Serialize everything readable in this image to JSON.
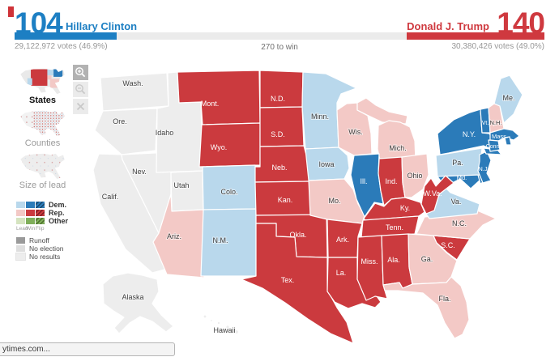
{
  "palette": {
    "dem_win": "#2b7bb9",
    "dem_lead": "#b9d8ec",
    "dem_flip": "#17466b",
    "rep_win": "#cb3a3e",
    "rep_lead": "#f3c9c6",
    "rep_flip": "#7e2023",
    "other_win": "#7fae5a",
    "other_lead": "#d5e4c0",
    "other_flip": "#4c6e2c",
    "runoff": "#9a9a9a",
    "no_election": "#dedede",
    "no_results": "#ededed",
    "dem_text": "#1d7fc3",
    "rep_text": "#cf393f",
    "bar_track": "#ebebeb",
    "marker": "#cf3339"
  },
  "header": {
    "clinton": {
      "name": "Hillary Clinton",
      "electoral_votes": "104",
      "votes_line": "29,122,972 votes (46.9%)"
    },
    "trump": {
      "name": "Donald J. Trump",
      "electoral_votes": "140",
      "votes_line": "30,380,426 votes (49.0%)"
    },
    "center_note": "270 to win",
    "bar": {
      "total_ev": 538,
      "clinton_ev": 104,
      "trump_ev": 140
    }
  },
  "sidebar": {
    "views": [
      {
        "label": "States",
        "active": true
      },
      {
        "label": "Counties",
        "active": false
      },
      {
        "label": "Size of lead",
        "active": false
      }
    ],
    "legend": {
      "rows": [
        {
          "key": "dem",
          "label": "Dem."
        },
        {
          "key": "rep",
          "label": "Rep."
        },
        {
          "key": "other",
          "label": "Other"
        }
      ],
      "modifiers": [
        "Lead",
        "Win",
        "Flip"
      ],
      "extra": [
        {
          "key": "runoff",
          "label": "Runoff"
        },
        {
          "key": "no_election",
          "label": "No election"
        },
        {
          "key": "no_results",
          "label": "No results"
        }
      ]
    }
  },
  "status_bar": {
    "text": "ytimes.com..."
  },
  "map": {
    "states": [
      {
        "id": "WA",
        "label": "Wash.",
        "status": "no_results"
      },
      {
        "id": "OR",
        "label": "Ore.",
        "status": "no_results"
      },
      {
        "id": "CA",
        "label": "Calif.",
        "status": "no_results"
      },
      {
        "id": "NV",
        "label": "Nev.",
        "status": "no_results"
      },
      {
        "id": "ID",
        "label": "Idaho",
        "status": "no_results"
      },
      {
        "id": "UT",
        "label": "Utah",
        "status": "no_results"
      },
      {
        "id": "AZ",
        "label": "Ariz.",
        "status": "rep_lead"
      },
      {
        "id": "MT",
        "label": "Mont.",
        "status": "rep_win"
      },
      {
        "id": "WY",
        "label": "Wyo.",
        "status": "rep_win"
      },
      {
        "id": "CO",
        "label": "Colo.",
        "status": "dem_lead"
      },
      {
        "id": "NM",
        "label": "N.M.",
        "status": "dem_lead"
      },
      {
        "id": "ND",
        "label": "N.D.",
        "status": "rep_win"
      },
      {
        "id": "SD",
        "label": "S.D.",
        "status": "rep_win"
      },
      {
        "id": "NE",
        "label": "Neb.",
        "status": "rep_win"
      },
      {
        "id": "KS",
        "label": "Kan.",
        "status": "rep_win"
      },
      {
        "id": "OK",
        "label": "Okla.",
        "status": "rep_win"
      },
      {
        "id": "TX",
        "label": "Tex.",
        "status": "rep_win"
      },
      {
        "id": "MN",
        "label": "Minn.",
        "status": "dem_lead"
      },
      {
        "id": "IA",
        "label": "Iowa",
        "status": "dem_lead"
      },
      {
        "id": "MO",
        "label": "Mo.",
        "status": "rep_lead"
      },
      {
        "id": "AR",
        "label": "Ark.",
        "status": "rep_win"
      },
      {
        "id": "LA",
        "label": "La.",
        "status": "rep_win"
      },
      {
        "id": "WI",
        "label": "Wis.",
        "status": "rep_lead"
      },
      {
        "id": "MI",
        "label": "Mich.",
        "status": "rep_lead"
      },
      {
        "id": "IL",
        "label": "Ill.",
        "status": "dem_win"
      },
      {
        "id": "IN",
        "label": "Ind.",
        "status": "rep_win"
      },
      {
        "id": "OH",
        "label": "Ohio",
        "status": "rep_lead"
      },
      {
        "id": "KY",
        "label": "Ky.",
        "status": "rep_win"
      },
      {
        "id": "TN",
        "label": "Tenn.",
        "status": "rep_win"
      },
      {
        "id": "MS",
        "label": "Miss.",
        "status": "rep_win"
      },
      {
        "id": "AL",
        "label": "Ala.",
        "status": "rep_win"
      },
      {
        "id": "GA",
        "label": "Ga.",
        "status": "rep_lead"
      },
      {
        "id": "FL",
        "label": "Fla.",
        "status": "rep_lead"
      },
      {
        "id": "SC",
        "label": "S.C.",
        "status": "rep_win"
      },
      {
        "id": "NC",
        "label": "N.C.",
        "status": "rep_lead"
      },
      {
        "id": "VA",
        "label": "Va.",
        "status": "dem_lead"
      },
      {
        "id": "MD",
        "label": "Md.",
        "status": "dem_win"
      },
      {
        "id": "DE",
        "label": "",
        "status": "dem_win"
      },
      {
        "id": "PA",
        "label": "Pa.",
        "status": "dem_lead"
      },
      {
        "id": "NJ",
        "label": "N.J.",
        "status": "dem_win"
      },
      {
        "id": "WV",
        "label": "W.Va.",
        "status": "rep_win"
      },
      {
        "id": "NY",
        "label": "N.Y.",
        "status": "dem_win"
      },
      {
        "id": "VT",
        "label": "Vt.",
        "status": "dem_win"
      },
      {
        "id": "NH",
        "label": "N.H.",
        "status": "rep_lead"
      },
      {
        "id": "ME",
        "label": "Me.",
        "status": "dem_lead"
      },
      {
        "id": "MA",
        "label": "Mass.",
        "status": "dem_win"
      },
      {
        "id": "RI",
        "label": "",
        "status": "dem_win"
      },
      {
        "id": "CT",
        "label": "Conn.",
        "status": "dem_win"
      },
      {
        "id": "AK",
        "label": "Alaska",
        "status": "no_results"
      },
      {
        "id": "HI",
        "label": "Hawaii",
        "status": "no_results"
      }
    ]
  }
}
